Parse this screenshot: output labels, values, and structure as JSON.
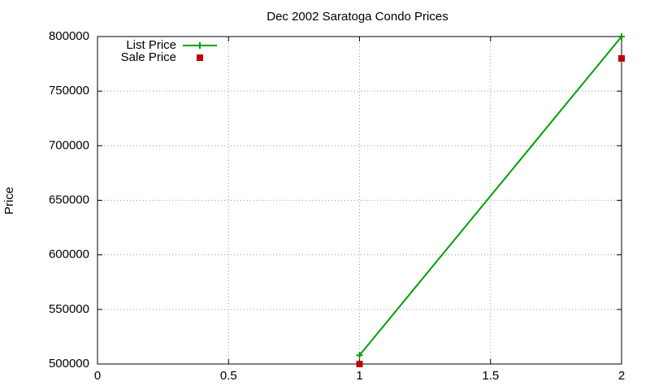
{
  "chart_data": {
    "type": "line",
    "title": "Dec 2002 Saratoga Condo Prices",
    "y_label": "Price",
    "x": [
      1,
      2
    ],
    "series": [
      {
        "name": "List Price",
        "color": "#00a000",
        "values": [
          508000,
          800000
        ],
        "line": true,
        "marker": "plus"
      },
      {
        "name": "Sale Price",
        "color": "#c00000",
        "values": [
          500000,
          780000
        ],
        "line": false,
        "marker": "square"
      }
    ],
    "xlim": [
      0,
      2
    ],
    "xticks": [
      0,
      0.5,
      1,
      1.5,
      2
    ],
    "ylim": [
      500000,
      800000
    ],
    "yticks": [
      500000,
      550000,
      600000,
      650000,
      700000,
      750000,
      800000
    ],
    "grid": true,
    "legend": "top-left"
  }
}
